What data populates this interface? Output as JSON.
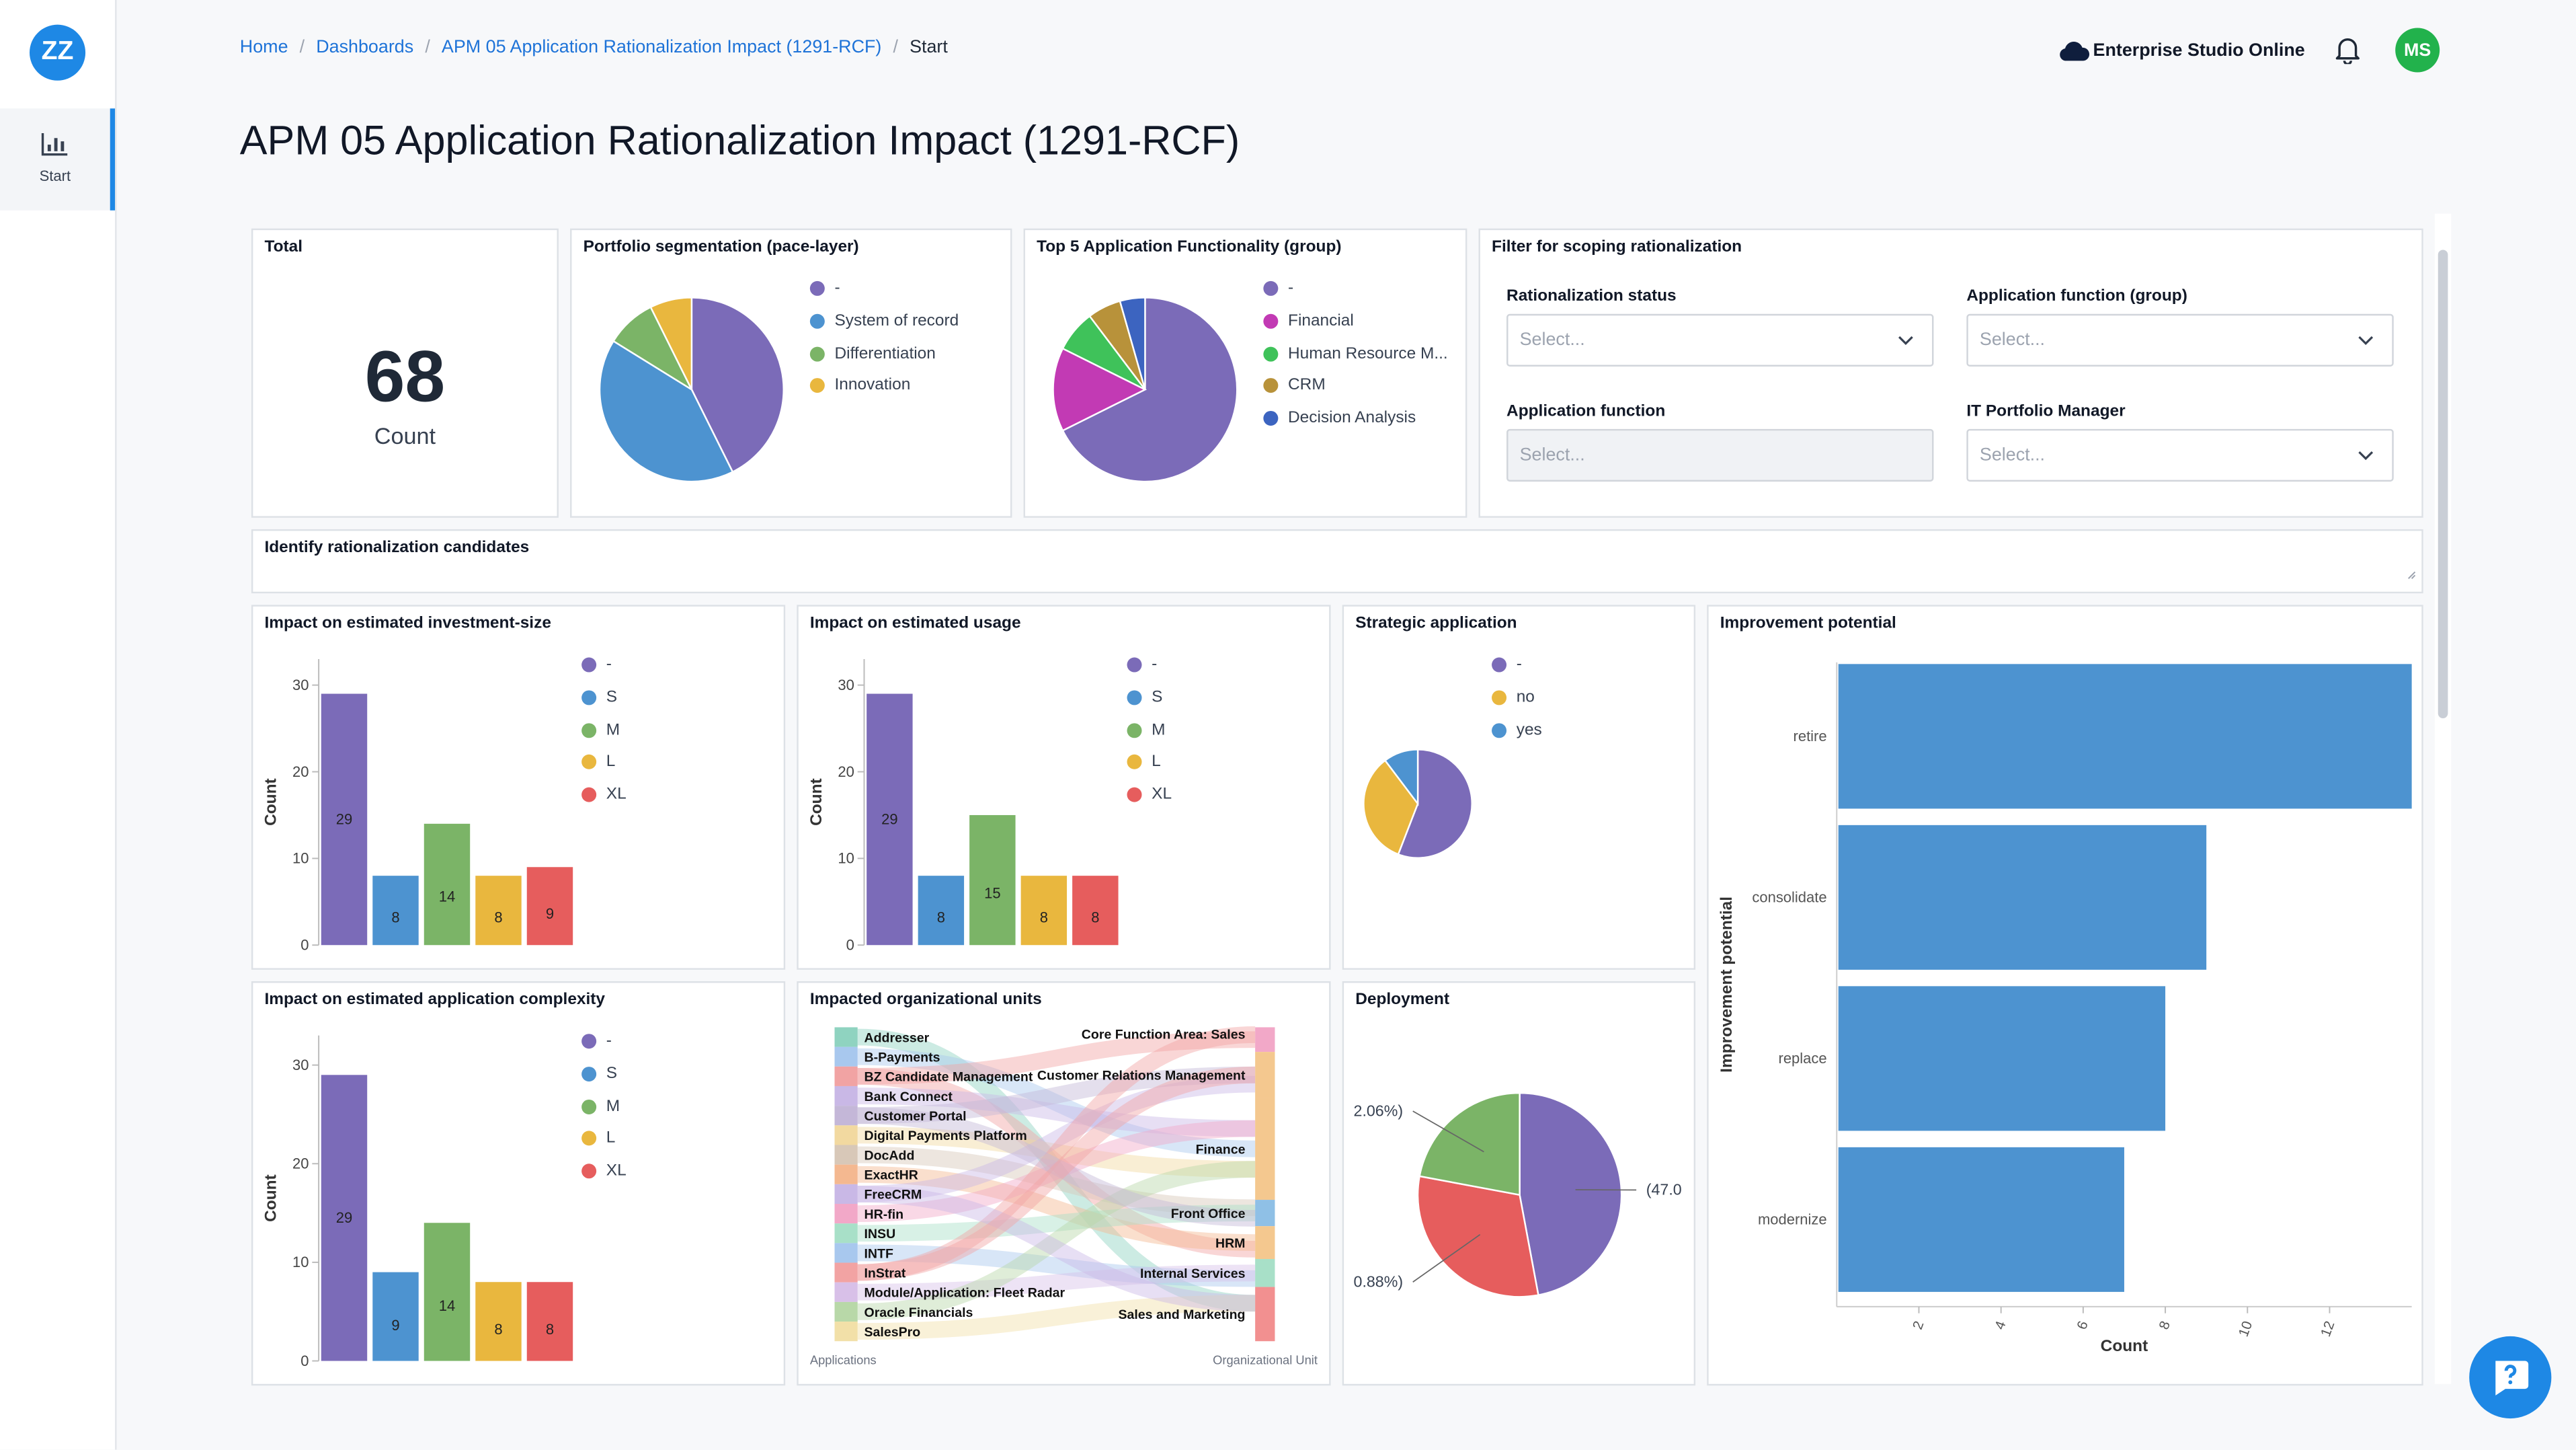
{
  "app": {
    "logo_text": "ZZ"
  },
  "sidebar": {
    "items": [
      {
        "label": "Start",
        "icon": "bar-chart-icon"
      }
    ]
  },
  "breadcrumb": [
    "Home",
    "Dashboards",
    "APM 05 Application Rationalization Impact (1291-RCF)",
    "Start"
  ],
  "page_title": "APM 05 Application Rationalization Impact (1291-RCF)",
  "header": {
    "workspace": "Enterprise Studio Online",
    "avatar_initials": "MS"
  },
  "colors": {
    "purple": "#7b6bb8",
    "blue": "#4d93d0",
    "green": "#7bb467",
    "yellow": "#e9b73e",
    "red": "#e65d5d",
    "magenta": "#c23ab4",
    "bright_green": "#3fc25a",
    "brown": "#b8923a",
    "navy": "#3c64c0",
    "accent": "#1e88e5"
  },
  "total": {
    "title": "Total",
    "value": "68",
    "label": "Count"
  },
  "portfolio": {
    "title": "Portfolio segmentation (pace-layer)",
    "chart_data": {
      "type": "pie",
      "labels": [
        "-",
        "System of record",
        "Differentiation",
        "Innovation"
      ],
      "values": [
        29,
        28,
        6,
        5
      ]
    }
  },
  "top5": {
    "title": "Top 5 Application Functionality (group)",
    "chart_data": {
      "type": "pie",
      "labels": [
        "-",
        "Financial",
        "Human Resource M...",
        "CRM",
        "Decision Analysis"
      ],
      "values": [
        46,
        10,
        5,
        4,
        3
      ]
    }
  },
  "filter": {
    "title": "Filter for scoping rationalization",
    "fields": [
      {
        "label": "Rationalization status",
        "placeholder": "Select..."
      },
      {
        "label": "Application function (group)",
        "placeholder": "Select..."
      },
      {
        "label": "Application function",
        "placeholder": "Select..."
      },
      {
        "label": "IT Portfolio Manager",
        "placeholder": "Select..."
      }
    ]
  },
  "identify": {
    "title": "Identify rationalization candidates"
  },
  "investment": {
    "title": "Impact on estimated investment-size",
    "chart_data": {
      "type": "bar",
      "categories": [
        "-",
        "S",
        "M",
        "L",
        "XL"
      ],
      "values": [
        29,
        8,
        14,
        8,
        9
      ],
      "ylabel": "Count",
      "ylim": [
        0,
        33
      ],
      "yticks": [
        0,
        10,
        20,
        30
      ],
      "legend": [
        "-",
        "S",
        "M",
        "L",
        "XL"
      ]
    }
  },
  "usage": {
    "title": "Impact on estimated usage",
    "chart_data": {
      "type": "bar",
      "categories": [
        "-",
        "S",
        "M",
        "L",
        "XL"
      ],
      "values": [
        29,
        8,
        15,
        8,
        8
      ],
      "ylabel": "Count",
      "ylim": [
        0,
        33
      ],
      "yticks": [
        0,
        10,
        20,
        30
      ],
      "legend": [
        "-",
        "S",
        "M",
        "L",
        "XL"
      ]
    }
  },
  "strategic": {
    "title": "Strategic application",
    "chart_data": {
      "type": "pie",
      "labels": [
        "-",
        "no",
        "yes"
      ],
      "values": [
        38,
        23,
        7
      ]
    }
  },
  "improvement": {
    "title": "Improvement potential",
    "chart_data": {
      "type": "bar",
      "orientation": "horizontal",
      "categories": [
        "retire",
        "consolidate",
        "replace",
        "modernize"
      ],
      "values": [
        14,
        9,
        8,
        7
      ],
      "xlabel": "Count",
      "ylabel": "Improvement potential",
      "xlim": [
        0,
        14
      ],
      "xticks": [
        2,
        4,
        6,
        8,
        10,
        12
      ]
    }
  },
  "complexity": {
    "title": "Impact on estimated application complexity",
    "chart_data": {
      "type": "bar",
      "categories": [
        "-",
        "S",
        "M",
        "L",
        "XL"
      ],
      "values": [
        29,
        9,
        14,
        8,
        8
      ],
      "ylabel": "Count",
      "ylim": [
        0,
        33
      ],
      "yticks": [
        0,
        10,
        20,
        30
      ],
      "legend": [
        "-",
        "S",
        "M",
        "L",
        "XL"
      ]
    }
  },
  "orgunits": {
    "title": "Impacted organizational units",
    "left_axis": "Applications",
    "right_axis": "Organizational Unit",
    "sources": [
      "Addresser",
      "B-Payments",
      "BZ Candidate Management",
      "Bank Connect",
      "Customer Portal",
      "Digital Payments Platform",
      "DocAdd",
      "ExactHR",
      "FreeCRM",
      "HR-fin",
      "INSU",
      "INTF",
      "InStrat",
      "Module/Application: Fleet Radar",
      "Oracle Financials",
      "SalesPro"
    ],
    "targets": [
      "Core Function Area: Sales",
      "Customer Relations Management",
      "Finance",
      "Front Office",
      "HRM",
      "Internal Services",
      "Sales and Marketing"
    ]
  },
  "deployment": {
    "title": "Deployment",
    "labels": [
      "2.06%)",
      "0.88%)",
      "(47.0"
    ],
    "chart_data": {
      "type": "pie",
      "values": [
        47.06,
        30.88,
        22.06
      ]
    }
  }
}
